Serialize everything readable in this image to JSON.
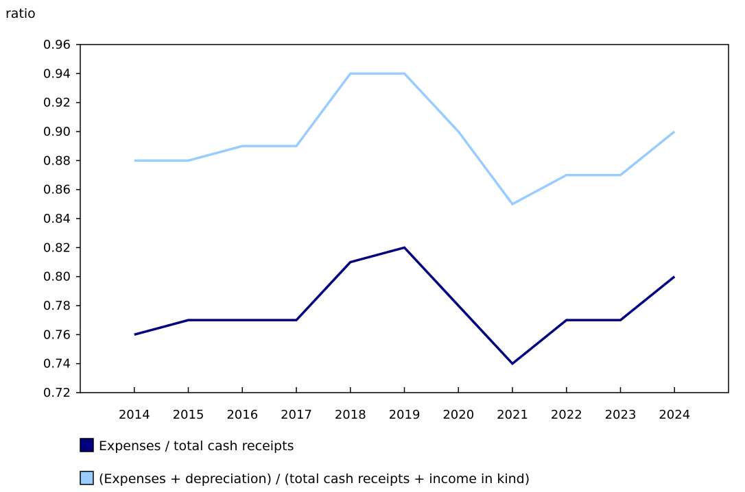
{
  "chart_data": {
    "type": "line",
    "title": "",
    "ylabel": "ratio",
    "xlabel": "",
    "ylim": [
      0.72,
      0.96
    ],
    "yticks": [
      "0.72",
      "0.74",
      "0.76",
      "0.78",
      "0.80",
      "0.82",
      "0.84",
      "0.86",
      "0.88",
      "0.90",
      "0.92",
      "0.94",
      "0.96"
    ],
    "categories": [
      "2014",
      "2015",
      "2016",
      "2017",
      "2018",
      "2019",
      "2020",
      "2021",
      "2022",
      "2023",
      "2024"
    ],
    "grid": false,
    "legend_position": "bottom",
    "series": [
      {
        "name": "Expenses / total cash receipts",
        "color": "#000080",
        "values": [
          0.76,
          0.77,
          0.77,
          0.77,
          0.81,
          0.82,
          0.78,
          0.74,
          0.77,
          0.77,
          0.8
        ]
      },
      {
        "name": "(Expenses + depreciation) / (total cash receipts + income in kind)",
        "color": "#99ccff",
        "values": [
          0.88,
          0.88,
          0.89,
          0.89,
          0.94,
          0.94,
          0.9,
          0.85,
          0.87,
          0.87,
          0.9
        ]
      }
    ]
  }
}
